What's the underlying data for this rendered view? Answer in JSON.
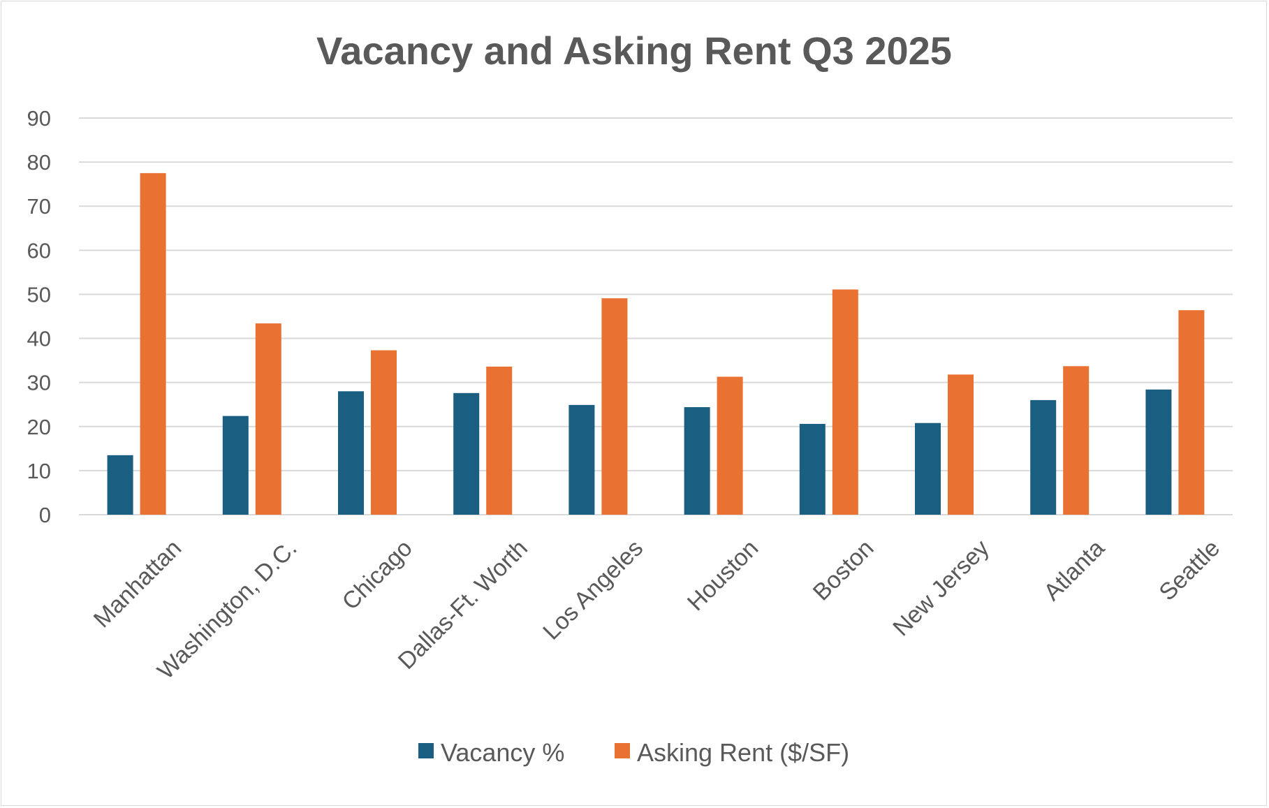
{
  "chart_data": {
    "type": "bar",
    "title": "Vacancy and Asking Rent Q3 2025",
    "xlabel": "",
    "ylabel": "",
    "ylim": [
      0,
      90
    ],
    "yticks": [
      0,
      10,
      20,
      30,
      40,
      50,
      60,
      70,
      80,
      90
    ],
    "grid": true,
    "legend_position": "bottom",
    "categories": [
      "Manhattan",
      "Washington, D.C.",
      "Chicago",
      "Dallas-Ft. Worth",
      "Los Angeles",
      "Houston",
      "Boston",
      "New Jersey",
      "Atlanta",
      "Seattle"
    ],
    "series": [
      {
        "name": "Vacancy %",
        "color": "#1a5f82",
        "values": [
          13.5,
          22.4,
          28.0,
          27.6,
          24.9,
          24.4,
          20.6,
          20.8,
          26.0,
          28.4
        ]
      },
      {
        "name": "Asking Rent ($/SF)",
        "color": "#e97132",
        "values": [
          77.5,
          43.4,
          37.3,
          33.6,
          49.1,
          31.3,
          51.1,
          31.8,
          33.7,
          46.4
        ]
      }
    ]
  }
}
